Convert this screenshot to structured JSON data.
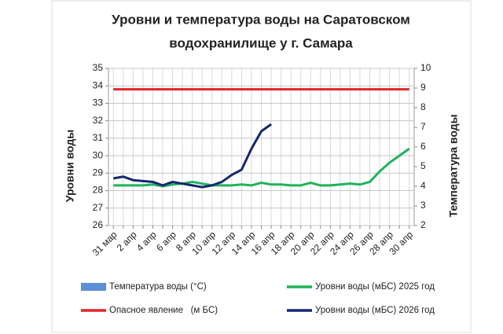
{
  "chart_data": {
    "type": "line",
    "title": [
      "Уровни и температура  воды на Саратовском",
      "водохранилище у  г. Самара"
    ],
    "y_label": "Уровни воды",
    "y2_label": "Температура воды",
    "categories": [
      "31 мар",
      null,
      "2 апр",
      null,
      "4 апр",
      null,
      "6 апр",
      null,
      "8 апр",
      null,
      "10 апр",
      null,
      "12 апр",
      null,
      "14 апр",
      null,
      "16 апр",
      null,
      "18 апр",
      null,
      "20 апр",
      null,
      "22 апр",
      null,
      "24 апр",
      null,
      "26 апр",
      null,
      "28 апр",
      null,
      "30 апр"
    ],
    "ylim": [
      26,
      35
    ],
    "yticks": [
      26,
      27,
      28,
      29,
      30,
      31,
      32,
      33,
      34,
      35
    ],
    "y2lim": [
      2,
      10
    ],
    "y2ticks": [
      2,
      3,
      4,
      5,
      6,
      7,
      8,
      9,
      10
    ],
    "grid": true,
    "series": [
      {
        "name": "Температура воды (°С)",
        "type": "bar",
        "axis": "y2",
        "color": "#5b8fd6",
        "values": [
          null,
          null,
          null,
          null,
          null,
          null,
          null,
          null,
          null,
          null,
          null,
          null,
          null,
          null,
          null,
          null,
          null,
          null,
          null,
          null,
          null,
          null,
          null,
          null,
          null,
          null,
          null,
          null,
          null,
          null,
          null
        ]
      },
      {
        "name": "Уровни воды (мБС) 2025 год",
        "color": "#1fb35a",
        "values": [
          28.3,
          28.3,
          28.3,
          28.3,
          28.35,
          28.25,
          28.35,
          28.4,
          28.5,
          28.4,
          28.3,
          28.3,
          28.3,
          28.35,
          28.3,
          28.45,
          28.35,
          28.35,
          28.3,
          28.3,
          28.45,
          28.3,
          28.3,
          28.35,
          28.4,
          28.35,
          28.5,
          29.1,
          29.6,
          30.0,
          30.4
        ]
      },
      {
        "name": "Опасное явление   (м БС)",
        "color": "#e32626",
        "values": [
          33.8,
          33.8,
          33.8,
          33.8,
          33.8,
          33.8,
          33.8,
          33.8,
          33.8,
          33.8,
          33.8,
          33.8,
          33.8,
          33.8,
          33.8,
          33.8,
          33.8,
          33.8,
          33.8,
          33.8,
          33.8,
          33.8,
          33.8,
          33.8,
          33.8,
          33.8,
          33.8,
          33.8,
          33.8,
          33.8,
          33.8
        ]
      },
      {
        "name": "Уровни воды (мБС) 2026 год",
        "color": "#15286e",
        "values": [
          28.7,
          28.8,
          28.6,
          28.55,
          28.5,
          28.3,
          28.5,
          28.4,
          28.3,
          28.2,
          28.3,
          28.5,
          28.9,
          29.2,
          30.4,
          31.4,
          31.8,
          null,
          null,
          null,
          null,
          null,
          null,
          null,
          null,
          null,
          null,
          null,
          null,
          null,
          null
        ]
      }
    ]
  }
}
